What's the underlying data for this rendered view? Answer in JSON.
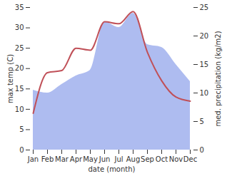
{
  "chart_data": {
    "type": "line",
    "xlabel": "date (month)",
    "ylabel": "max temp (C)",
    "y2label": "med. precipitation (kg/m2)",
    "categories": [
      "Jan",
      "Feb",
      "Mar",
      "Apr",
      "May",
      "Jun",
      "Jul",
      "Aug",
      "Sep",
      "Oct",
      "Nov",
      "Dec"
    ],
    "series": [
      {
        "name": "med. precipitation (kg/m2)",
        "type": "area",
        "axis": "y2",
        "color": "#aebcf0",
        "values": [
          10.5,
          10,
          11.5,
          13,
          14,
          22.5,
          21.5,
          24,
          18.5,
          18,
          15,
          12
        ]
      },
      {
        "name": "max temp (C)",
        "type": "line",
        "axis": "y",
        "color": "#c05058",
        "values": [
          9,
          19,
          19.5,
          25,
          24.5,
          31.5,
          31,
          34,
          24,
          17,
          13,
          12
        ]
      }
    ],
    "ylim": [
      0,
      35
    ],
    "yticks": [
      0,
      5,
      10,
      15,
      20,
      25,
      30,
      35
    ],
    "y2lim": [
      0,
      25
    ],
    "y2ticks": [
      0,
      5,
      10,
      15,
      20,
      25
    ]
  }
}
